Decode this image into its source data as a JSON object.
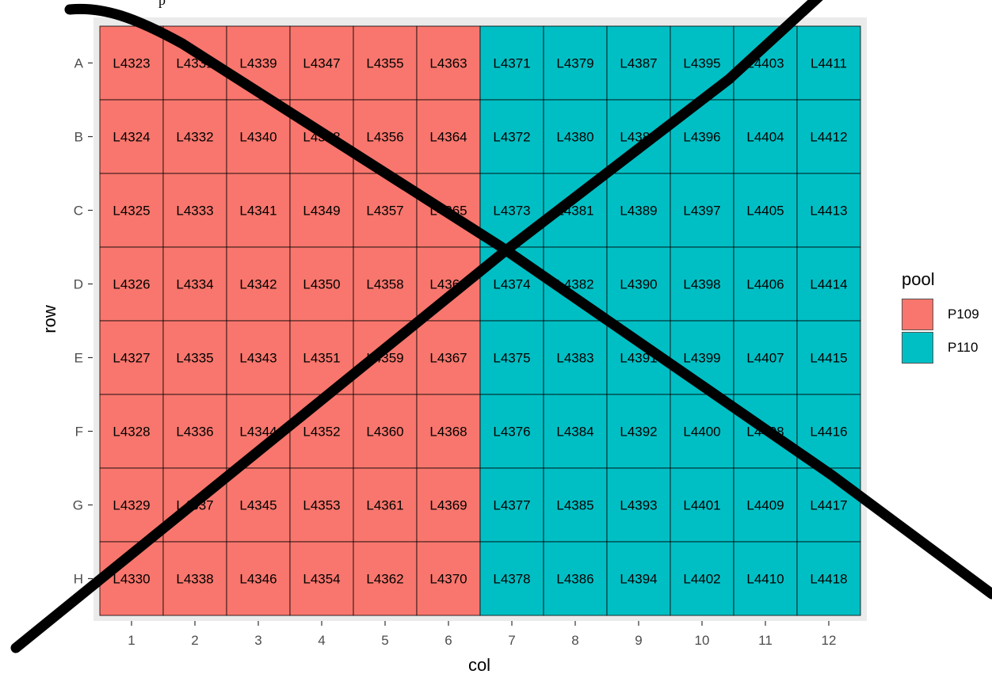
{
  "title": "p",
  "chart_data": {
    "type": "heatmap",
    "title": "p",
    "xlabel": "col",
    "ylabel": "row",
    "x": [
      1,
      2,
      3,
      4,
      5,
      6,
      7,
      8,
      9,
      10,
      11,
      12
    ],
    "y": [
      "A",
      "B",
      "C",
      "D",
      "E",
      "F",
      "G",
      "H"
    ],
    "values": [
      [
        "L4323",
        "L4331",
        "L4339",
        "L4347",
        "L4355",
        "L4363",
        "L4371",
        "L4379",
        "L4387",
        "L4395",
        "L4403",
        "L4411"
      ],
      [
        "L4324",
        "L4332",
        "L4340",
        "L4348",
        "L4356",
        "L4364",
        "L4372",
        "L4380",
        "L4388",
        "L4396",
        "L4404",
        "L4412"
      ],
      [
        "L4325",
        "L4333",
        "L4341",
        "L4349",
        "L4357",
        "L4365",
        "L4373",
        "L4381",
        "L4389",
        "L4397",
        "L4405",
        "L4413"
      ],
      [
        "L4326",
        "L4334",
        "L4342",
        "L4350",
        "L4358",
        "L4366",
        "L4374",
        "L4382",
        "L4390",
        "L4398",
        "L4406",
        "L4414"
      ],
      [
        "L4327",
        "L4335",
        "L4343",
        "L4351",
        "L4359",
        "L4367",
        "L4375",
        "L4383",
        "L4391",
        "L4399",
        "L4407",
        "L4415"
      ],
      [
        "L4328",
        "L4336",
        "L4344",
        "L4352",
        "L4360",
        "L4368",
        "L4376",
        "L4384",
        "L4392",
        "L4400",
        "L4408",
        "L4416"
      ],
      [
        "L4329",
        "L4337",
        "L4345",
        "L4353",
        "L4361",
        "L4369",
        "L4377",
        "L4385",
        "L4393",
        "L4401",
        "L4409",
        "L4417"
      ],
      [
        "L4330",
        "L4338",
        "L4346",
        "L4354",
        "L4362",
        "L4370",
        "L4378",
        "L4386",
        "L4394",
        "L4402",
        "L4410",
        "L4418"
      ]
    ],
    "fill_by": "pool",
    "pool_by_col": [
      "P109",
      "P109",
      "P109",
      "P109",
      "P109",
      "P109",
      "P110",
      "P110",
      "P110",
      "P110",
      "P110",
      "P110"
    ],
    "legend": {
      "title": "pool",
      "placement": "right",
      "items": [
        {
          "name": "P109",
          "color": "#F8766D"
        },
        {
          "name": "P110",
          "color": "#00BFC4"
        }
      ]
    },
    "grid": true
  }
}
